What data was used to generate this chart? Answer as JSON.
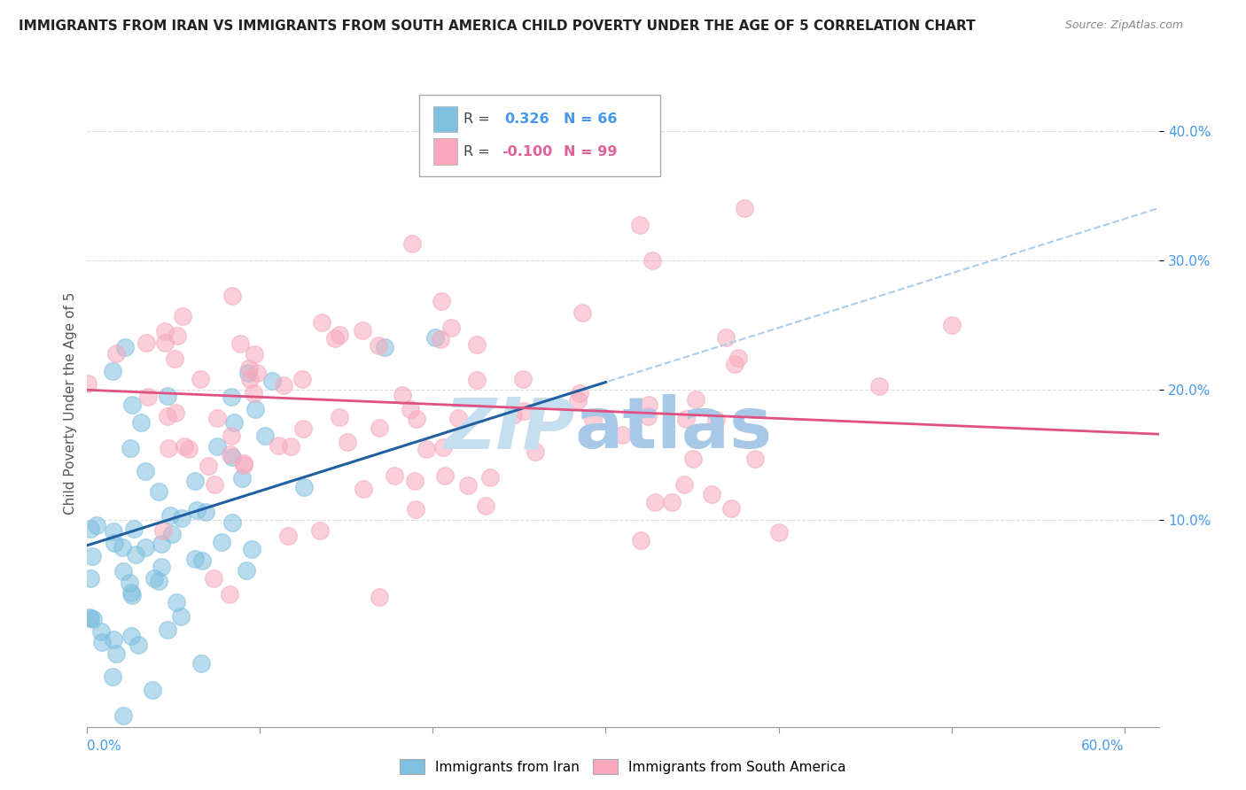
{
  "title": "IMMIGRANTS FROM IRAN VS IMMIGRANTS FROM SOUTH AMERICA CHILD POVERTY UNDER THE AGE OF 5 CORRELATION CHART",
  "source": "Source: ZipAtlas.com",
  "ylabel": "Child Poverty Under the Age of 5",
  "xlim": [
    0.0,
    0.62
  ],
  "ylim": [
    -0.06,
    0.44
  ],
  "iran_R": 0.326,
  "iran_N": 66,
  "sa_R": -0.1,
  "sa_N": 99,
  "iran_color": "#7fbfdf",
  "sa_color": "#f7a8bc",
  "iran_line_color": "#2060a0",
  "sa_line_color": "#e05080",
  "dash_line_color": "#aaccee",
  "watermark_zip_color": "#c5dff0",
  "watermark_atlas_color": "#a8c8e8",
  "ytick_vals": [
    0.1,
    0.2,
    0.3,
    0.4
  ],
  "ytick_labels": [
    "10.0%",
    "20.0%",
    "30.0%",
    "40.0%"
  ],
  "grid_color": "#dddddd",
  "legend_box_color": "#aaaaaa",
  "title_color": "#222222",
  "source_color": "#888888",
  "tick_color": "#4499ee",
  "ylabel_color": "#555555"
}
